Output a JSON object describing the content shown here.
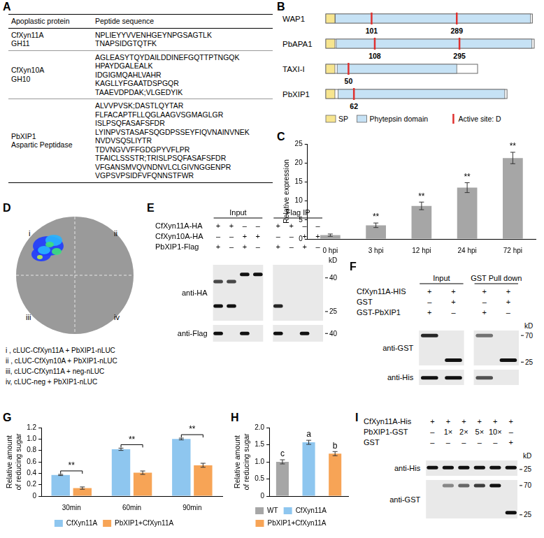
{
  "table": {
    "panel": "A",
    "header": [
      "Apoplastic protein",
      "Peptide sequence"
    ],
    "rows": [
      {
        "protein": [
          "CfXyn11A",
          "GH11"
        ],
        "peptides": [
          "NPLIEYYVVENHGEYNPGSAGTLK",
          "TNAPSIDGTQTFK"
        ]
      },
      {
        "protein": [
          "CfXyn10A",
          "GH10"
        ],
        "peptides": [
          "AGLEASYTQYDAILDDINEFGQTTPTNGQK",
          "HPAYDGALEALK",
          "IDGIGMQAHLVAHR",
          "KAGLLYFGAATDSPGQR",
          "TAAEVDPDAK;VLGEDYIK"
        ]
      },
      {
        "protein": [
          "PbXIP1",
          "Aspartic Peptidase"
        ],
        "peptides": [
          "ALVVPVSK;DASTLQYTAR",
          "FLFACAPTFLLQGLAAGVSGMAGLGR",
          "ISLPSQFASAFSFDR",
          "LYINPVSTASAFSQGDPSSEYFIQVNAINVNEK",
          "NVDVSQSLIYTR",
          "TDVNGVVFFGDGPYVFLPR",
          "TFAICLSSSTR;TRISLPSQFASAFSFDR",
          "VFGANSMVQVNDNVLCLGIVNGGENPR",
          "VGPSVPSIDFVFQNNSTFWR"
        ]
      }
    ]
  },
  "domains": {
    "panel": "B",
    "proteins": [
      {
        "name": "WAP1",
        "length": 456,
        "sp": [
          1,
          20
        ],
        "domain": [
          22,
          452
        ],
        "active_sites": [
          101,
          289
        ]
      },
      {
        "name": "PbAPA1",
        "length": 460,
        "sp": [
          1,
          20
        ],
        "domain": [
          24,
          455
        ],
        "active_sites": [
          108,
          295
        ]
      },
      {
        "name": "TAXI-I",
        "length": 335,
        "sp": [
          1,
          20
        ],
        "domain": [
          26,
          289
        ],
        "active_sites": [
          50
        ]
      },
      {
        "name": "PbXIP1",
        "length": 400,
        "sp": [
          1,
          20
        ],
        "domain": [
          28,
          395
        ],
        "active_sites": [
          62
        ]
      }
    ],
    "legend_labels": [
      "SP",
      "Phytepsin domain",
      "Active site: D"
    ]
  },
  "luc": {
    "panel": "D",
    "quadrants": [
      "i",
      "ii",
      "iii",
      "iv"
    ],
    "captions": [
      "i , cLUC-CfXyn11A + PbXIP1-nLUC",
      "ii , cLUC-CfXyn10A + PbXIP1-nLUC",
      "iii, cLUC-CfXyn11A + neg-nLUC",
      "iv, cLUC-neg + PbXIP1-nLUC"
    ]
  },
  "blots": [
    {
      "panel": "E",
      "lanes": 8,
      "headers": [
        {
          "text": "Input",
          "lanes": [
            0,
            3
          ]
        },
        {
          "text": "Flag IP",
          "lanes": [
            4,
            7
          ]
        }
      ],
      "rows": [
        {
          "label": "CfXyn11A-HA",
          "marks": [
            "+",
            "+",
            "–",
            "–",
            "+",
            "+",
            "–",
            "–"
          ]
        },
        {
          "label": "CfXyn10A-HA",
          "marks": [
            "–",
            "–",
            "+",
            "+",
            "–",
            "–",
            "+",
            "+"
          ]
        },
        {
          "label": "PbXIP1-Flag",
          "marks": [
            "+",
            "–",
            "+",
            "–",
            "+",
            "–",
            "+",
            "–"
          ]
        }
      ],
      "blots": [
        {
          "label": "anti-HA",
          "kd_label": "kD",
          "markers": [
            40,
            25
          ],
          "mw_range": [
            48,
            22
          ],
          "bands": [
            {
              "lane": 0,
              "mw": 38,
              "intensity": 0.75
            },
            {
              "lane": 1,
              "mw": 38,
              "intensity": 0.75
            },
            {
              "lane": 0,
              "mw": 27,
              "intensity": 1
            },
            {
              "lane": 1,
              "mw": 27,
              "intensity": 1
            },
            {
              "lane": 2,
              "mw": 42,
              "intensity": 1
            },
            {
              "lane": 3,
              "mw": 42,
              "intensity": 1
            },
            {
              "lane": 4,
              "mw": 27,
              "intensity": 0.9
            }
          ]
        },
        {
          "label": "anti-Flag",
          "markers": [
            40
          ],
          "mw_range": [
            46,
            35
          ],
          "bands": [
            {
              "lane": 0,
              "mw": 40,
              "intensity": 1
            },
            {
              "lane": 2,
              "mw": 40,
              "intensity": 1
            },
            {
              "lane": 4,
              "mw": 40,
              "intensity": 1
            },
            {
              "lane": 6,
              "mw": 40,
              "intensity": 1
            }
          ]
        }
      ]
    },
    {
      "panel": "F",
      "lanes": 4,
      "headers": [
        {
          "text": "Input",
          "lanes": [
            0,
            1
          ]
        },
        {
          "text": "GST Pull down",
          "lanes": [
            2,
            3
          ]
        }
      ],
      "rows": [
        {
          "label": "CfXyn11A-HIS",
          "marks": [
            "+",
            "+",
            "+",
            "+"
          ]
        },
        {
          "label": "GST",
          "marks": [
            "–",
            "+",
            "–",
            "+"
          ]
        },
        {
          "label": "GST-PbXIP1",
          "marks": [
            "+",
            "–",
            "+",
            "–"
          ]
        }
      ],
      "blots": [
        {
          "label": "anti-GST",
          "kd_label": "kD",
          "markers": [
            70,
            25
          ],
          "mw_range": [
            85,
            22
          ],
          "bands": [
            {
              "lane": 0,
              "mw": 70,
              "intensity": 0.9
            },
            {
              "lane": 1,
              "mw": 27,
              "intensity": 1
            },
            {
              "lane": 2,
              "mw": 70,
              "intensity": 0.55
            },
            {
              "lane": 3,
              "mw": 27,
              "intensity": 1
            }
          ]
        },
        {
          "label": "anti-His",
          "markers": [],
          "mw_range": [
            30,
            23
          ],
          "bands": [
            {
              "lane": 0,
              "mw": 26,
              "intensity": 1
            },
            {
              "lane": 1,
              "mw": 26,
              "intensity": 1
            },
            {
              "lane": 2,
              "mw": 26,
              "intensity": 0.7
            }
          ]
        }
      ]
    },
    {
      "panel": "I",
      "lanes": 6,
      "rows": [
        {
          "label": "CfXyn11A-His",
          "marks": [
            "+",
            "+",
            "+",
            "+",
            "+",
            "+"
          ]
        },
        {
          "label": "PbXIP1-GST",
          "marks": [
            "–",
            "1×",
            "2×",
            "5×",
            "10×",
            "–"
          ]
        },
        {
          "label": "GST",
          "marks": [
            "–",
            "–",
            "–",
            "–",
            "–",
            "+"
          ]
        }
      ],
      "blots": [
        {
          "label": "anti-His",
          "kd_label": "kD",
          "markers": [
            25
          ],
          "mw_range": [
            30,
            22
          ],
          "bands": [
            {
              "lane": 0,
              "mw": 26,
              "intensity": 1
            },
            {
              "lane": 1,
              "mw": 26,
              "intensity": 1
            },
            {
              "lane": 2,
              "mw": 26,
              "intensity": 1
            },
            {
              "lane": 3,
              "mw": 26,
              "intensity": 1
            },
            {
              "lane": 4,
              "mw": 26,
              "intensity": 1
            },
            {
              "lane": 5,
              "mw": 26,
              "intensity": 1
            }
          ]
        },
        {
          "label": "anti-GST",
          "markers": [
            70,
            25
          ],
          "mw_range": [
            85,
            22
          ],
          "bands": [
            {
              "lane": 1,
              "mw": 70,
              "intensity": 0.45
            },
            {
              "lane": 2,
              "mw": 70,
              "intensity": 0.6
            },
            {
              "lane": 3,
              "mw": 70,
              "intensity": 0.8
            },
            {
              "lane": 4,
              "mw": 70,
              "intensity": 1
            },
            {
              "lane": 5,
              "mw": 27,
              "intensity": 1
            }
          ]
        }
      ]
    }
  ],
  "chart_data": [
    {
      "panel": "C",
      "type": "bar",
      "categories": [
        "0 hpi",
        "3 hpi",
        "12 hpi",
        "24 hpi",
        "72 hpi"
      ],
      "values": [
        1.0,
        3.6,
        8.7,
        13.5,
        21.3
      ],
      "errors": [
        0.3,
        0.6,
        1.0,
        1.3,
        1.5
      ],
      "annotations": [
        null,
        "**",
        "**",
        "**",
        "**"
      ],
      "color": "#a6a6a6",
      "ylabel": "Relative expression",
      "ylim": [
        0,
        25
      ],
      "yticks": [
        0,
        5,
        10,
        15,
        20,
        25
      ],
      "grid": false
    },
    {
      "panel": "G",
      "type": "bar",
      "categories": [
        "30min",
        "60min",
        "90min"
      ],
      "series": [
        {
          "name": "CfXyn11A",
          "color": "#8ec6ef",
          "values": [
            0.37,
            0.82,
            1.0
          ],
          "errors": [
            0.01,
            0.02,
            0.015
          ]
        },
        {
          "name": "PbXIP1+CfXyn11A",
          "color": "#f7a456",
          "values": [
            0.14,
            0.41,
            0.54
          ],
          "errors": [
            0.02,
            0.03,
            0.035
          ]
        }
      ],
      "significance": [
        "**",
        "**",
        "**"
      ],
      "ylabel": "Relative amount of reducing sugar",
      "ylim": [
        0,
        1.2
      ],
      "yticks": [
        0,
        0.2,
        0.4,
        0.6,
        0.8,
        {
          "value": 1,
          "label": "1.0"
        },
        1.2
      ],
      "grid": false,
      "legend": "bottom"
    },
    {
      "panel": "H",
      "type": "bar",
      "categories": [
        "WT",
        "CfXyn11A",
        "PbXIP1+CfXyn11A"
      ],
      "values": [
        1.0,
        1.57,
        1.24
      ],
      "errors": [
        0.06,
        0.06,
        0.06
      ],
      "annotations": [
        "c",
        "a",
        "b"
      ],
      "colors": [
        "#a6a6a6",
        "#8ec6ef",
        "#f7a456"
      ],
      "ylabel": "Relative amount of reducing sugar",
      "ylim": [
        0,
        2
      ],
      "yticks": [
        0,
        0.5,
        {
          "value": 1,
          "label": "1.0"
        },
        1.5,
        {
          "value": 2,
          "label": "2.0"
        }
      ],
      "tick_labels": "y",
      "grid": false,
      "legend": "bottom"
    }
  ]
}
